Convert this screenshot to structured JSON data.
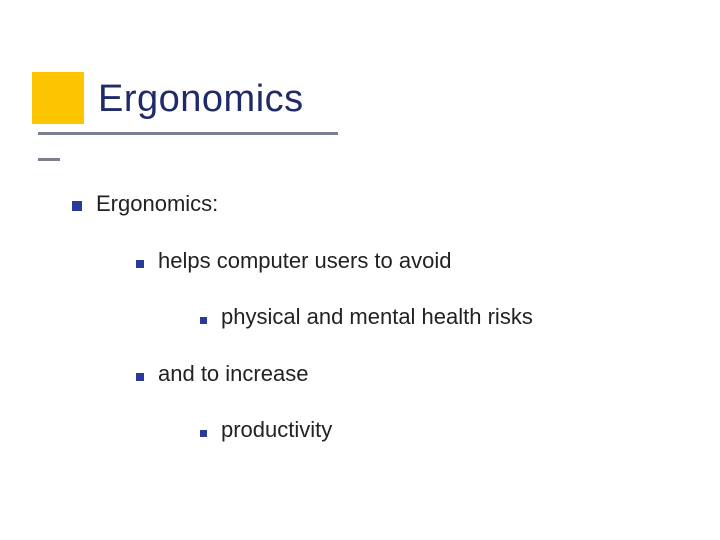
{
  "slide": {
    "title": "Ergonomics",
    "accent_color": "#fdc400",
    "title_color": "#1f2a6b",
    "underline_color": "#7a8090",
    "underline_long_width": 300,
    "bullet_color": "#2a3a9a",
    "text_color": "#222222",
    "background_color": "#ffffff",
    "title_fontsize": 38,
    "body_fontsize": 22,
    "bullets": {
      "lvl1": {
        "text": "Ergonomics:"
      },
      "lvl2a": {
        "text": "helps computer users to avoid"
      },
      "lvl3a": {
        "text": "physical and mental health risks"
      },
      "lvl2b": {
        "text": "and to increase"
      },
      "lvl3b": {
        "text": "productivity"
      }
    }
  }
}
